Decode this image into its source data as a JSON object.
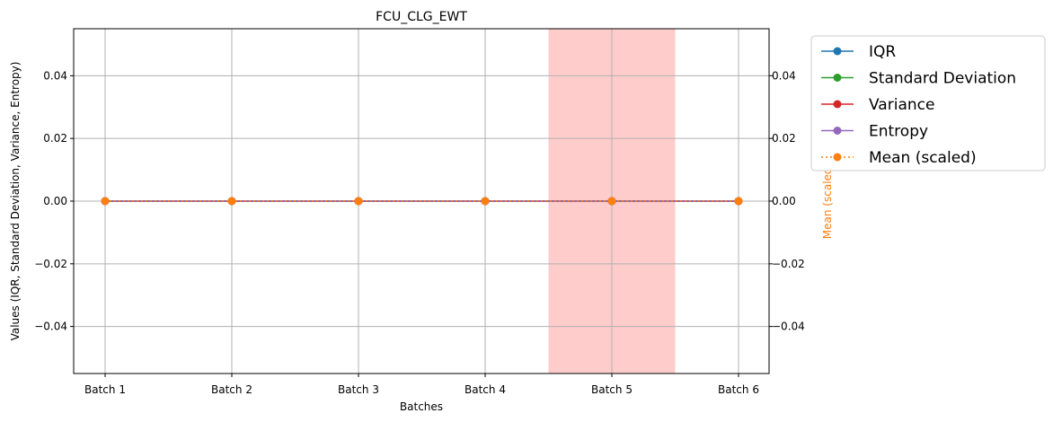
{
  "chart_data": {
    "type": "line",
    "title": "FCU_CLG_EWT",
    "xlabel": "Batches",
    "ylabel": "Values (IQR, Standard Deviation, Variance, Entropy)",
    "ylabel_right": "Mean (scaled)",
    "categories": [
      "Batch 1",
      "Batch 2",
      "Batch 3",
      "Batch 4",
      "Batch 5",
      "Batch 6"
    ],
    "ylim": [
      -0.055,
      0.055
    ],
    "yticks": [
      -0.04,
      -0.02,
      0.0,
      0.02,
      0.04
    ],
    "ytick_labels": [
      "−0.04",
      "−0.02",
      "0.00",
      "0.02",
      "0.04"
    ],
    "grid": true,
    "legend_position": "outside-upper-right",
    "highlight": {
      "from": 4.5,
      "to": 5.5,
      "color": "#ffcccc"
    },
    "series": [
      {
        "name": "IQR",
        "values": [
          0,
          0,
          0,
          0,
          0,
          0
        ],
        "color": "#1f77b4",
        "linestyle": "solid",
        "axis": "left"
      },
      {
        "name": "Standard Deviation",
        "values": [
          0,
          0,
          0,
          0,
          0,
          0
        ],
        "color": "#2ca02c",
        "linestyle": "solid",
        "axis": "left"
      },
      {
        "name": "Variance",
        "values": [
          0,
          0,
          0,
          0,
          0,
          0
        ],
        "color": "#d62728",
        "linestyle": "solid",
        "axis": "left"
      },
      {
        "name": "Entropy",
        "values": [
          0,
          0,
          0,
          0,
          0,
          0
        ],
        "color": "#9467bd",
        "linestyle": "solid",
        "axis": "left"
      },
      {
        "name": "Mean (scaled)",
        "values": [
          0,
          0,
          0,
          0,
          0,
          0
        ],
        "color": "#ff7f0e",
        "linestyle": "dotted",
        "axis": "right"
      }
    ]
  }
}
